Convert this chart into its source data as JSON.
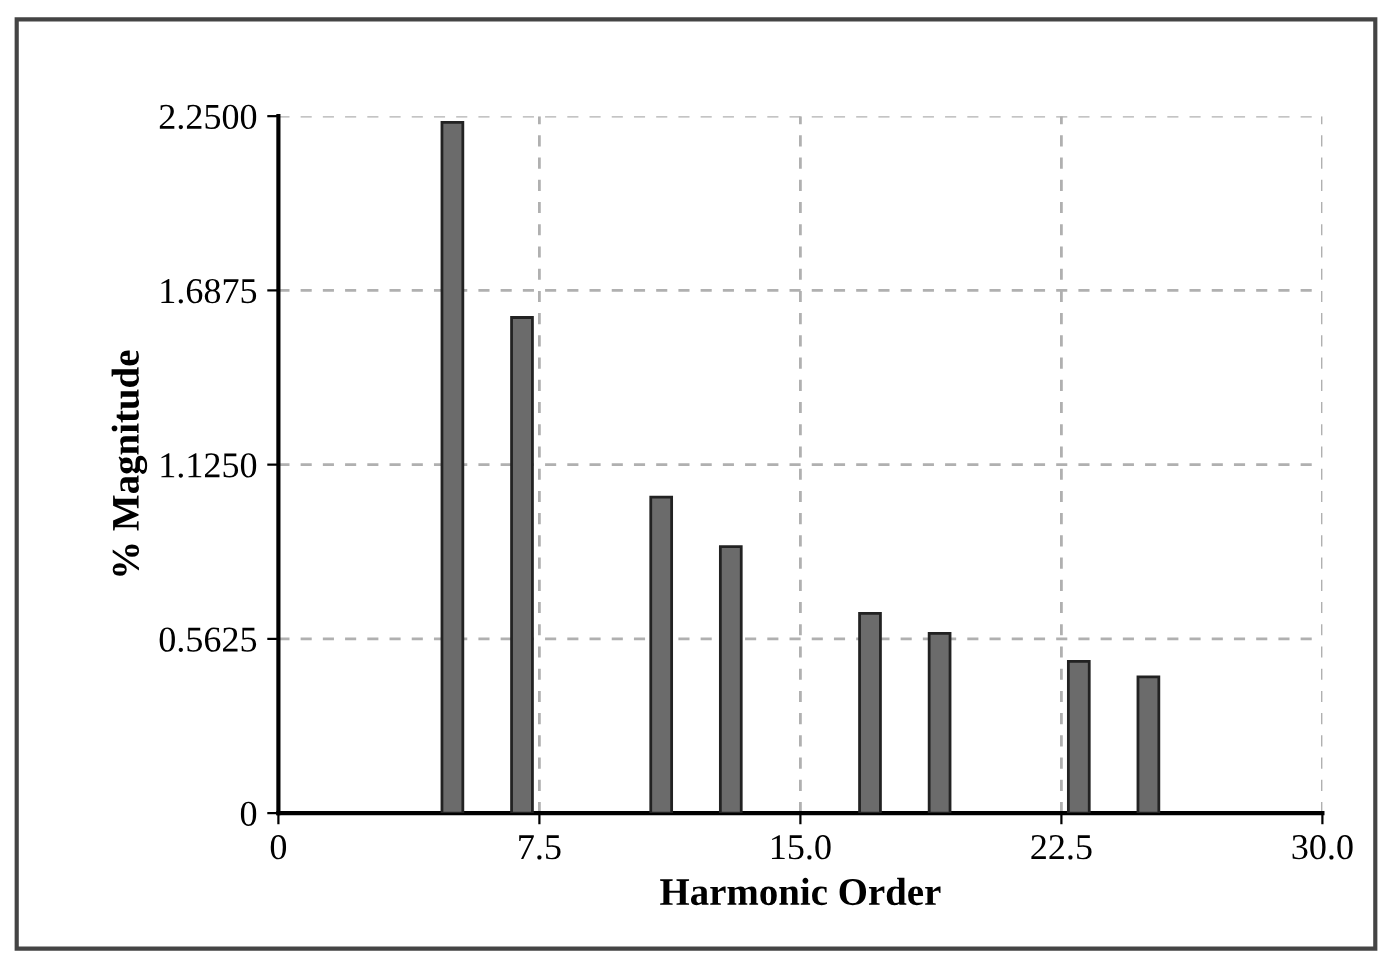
{
  "chart_data": {
    "type": "bar",
    "xlabel": "Harmonic Order",
    "ylabel": "% Magnitude",
    "x": [
      5,
      7,
      11,
      13,
      17,
      19,
      23,
      25
    ],
    "values": [
      2.23,
      1.6,
      1.02,
      0.86,
      0.645,
      0.58,
      0.49,
      0.44
    ],
    "color": "#6b6b6b",
    "xlim": [
      0,
      30
    ],
    "xticks": [
      0,
      {
        "value": 7.5,
        "label": "7.5"
      },
      {
        "value": 15,
        "label": "15.0"
      },
      {
        "value": 22.5,
        "label": "22.5"
      },
      {
        "value": 30,
        "label": "30.0"
      }
    ],
    "ylim": [
      0,
      2.25
    ],
    "yticks": [
      0,
      {
        "value": 0.5625,
        "label": "0.5625"
      },
      {
        "value": 1.125,
        "label": "1.1250"
      },
      {
        "value": 1.6875,
        "label": "1.6875"
      },
      {
        "value": 2.25,
        "label": "2.2500"
      }
    ],
    "grid": true
  }
}
